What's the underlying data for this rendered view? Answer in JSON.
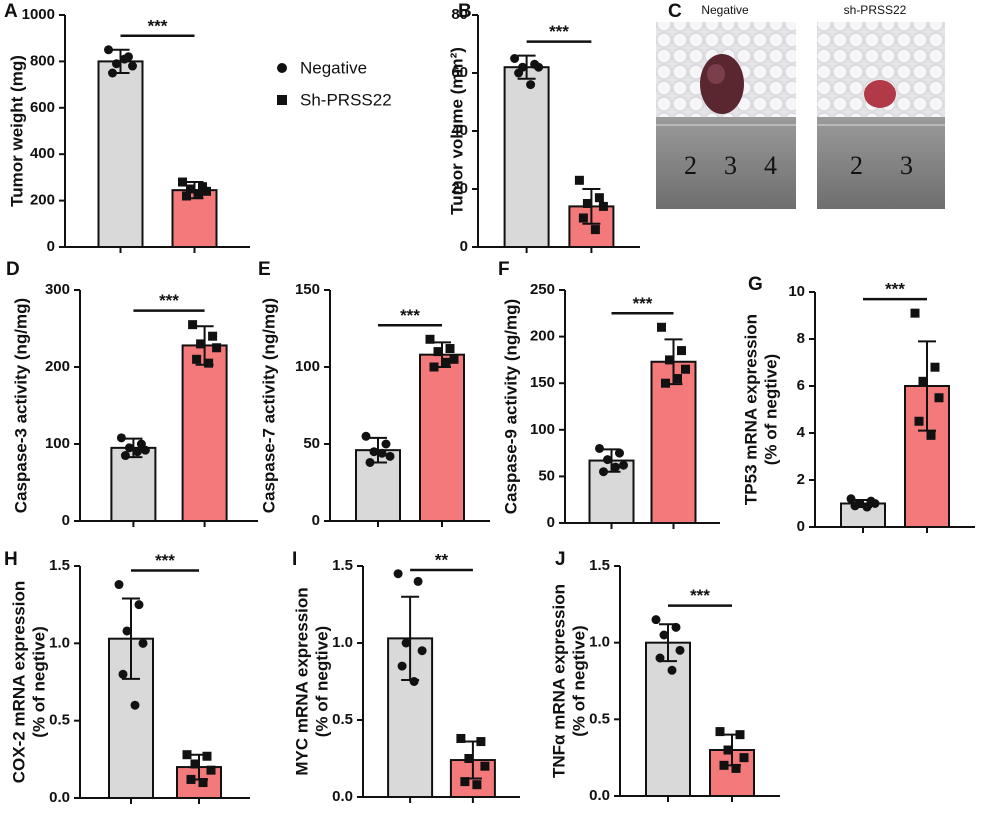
{
  "chart_data": [
    {
      "type": "bar",
      "panel": "A",
      "ylabel": "Tumor weight (mg)",
      "annotation": "***",
      "ylim": [
        0,
        1000
      ],
      "yticks": [
        0,
        200,
        400,
        600,
        800,
        1000
      ],
      "series": [
        {
          "name": "Negative",
          "color": "#d9d9d9",
          "marker": "circle",
          "values": [
            800
          ],
          "errors": [
            50
          ],
          "points": [
            850,
            820,
            790,
            780,
            750,
            810
          ]
        },
        {
          "name": "Sh-PRSS22",
          "color": "#f4797b",
          "marker": "square",
          "values": [
            245
          ],
          "errors": [
            35
          ],
          "points": [
            280,
            260,
            250,
            240,
            220,
            230
          ]
        }
      ]
    },
    {
      "type": "bar",
      "panel": "B",
      "ylabel": "Tumor volume (mm²)",
      "annotation": "***",
      "ylim": [
        0,
        80
      ],
      "yticks": [
        0,
        20,
        40,
        60,
        80
      ],
      "series": [
        {
          "name": "Negative",
          "color": "#d9d9d9",
          "marker": "circle",
          "values": [
            62
          ],
          "errors": [
            4
          ],
          "points": [
            65,
            63,
            62,
            62,
            60,
            56
          ]
        },
        {
          "name": "Sh-PRSS22",
          "color": "#f4797b",
          "marker": "square",
          "values": [
            14
          ],
          "errors": [
            6
          ],
          "points": [
            23,
            17,
            15,
            14,
            10,
            6
          ]
        }
      ]
    },
    {
      "type": "bar",
      "panel": "D",
      "ylabel": "Caspase-3 activity (ng/mg)",
      "annotation": "***",
      "ylim": [
        0,
        300
      ],
      "yticks": [
        0,
        100,
        200,
        300
      ],
      "series": [
        {
          "name": "Negative",
          "color": "#d9d9d9",
          "marker": "circle",
          "values": [
            95
          ],
          "errors": [
            12
          ],
          "points": [
            108,
            100,
            95,
            92,
            85,
            90
          ]
        },
        {
          "name": "Sh-PRSS22",
          "color": "#f4797b",
          "marker": "square",
          "values": [
            228
          ],
          "errors": [
            25
          ],
          "points": [
            255,
            240,
            230,
            225,
            210,
            205
          ]
        }
      ]
    },
    {
      "type": "bar",
      "panel": "E",
      "ylabel": "Caspase-7 activity (ng/mg)",
      "annotation": "***",
      "ylim": [
        0,
        150
      ],
      "yticks": [
        0,
        50,
        100,
        150
      ],
      "series": [
        {
          "name": "Negative",
          "color": "#d9d9d9",
          "marker": "circle",
          "values": [
            46
          ],
          "errors": [
            8
          ],
          "points": [
            55,
            50,
            45,
            42,
            38,
            44
          ]
        },
        {
          "name": "Sh-PRSS22",
          "color": "#f4797b",
          "marker": "square",
          "values": [
            108
          ],
          "errors": [
            8
          ],
          "points": [
            118,
            112,
            110,
            105,
            100,
            103
          ]
        }
      ]
    },
    {
      "type": "bar",
      "panel": "F",
      "ylabel": "Caspase-9 activity (ng/mg)",
      "annotation": "***",
      "ylim": [
        0,
        250
      ],
      "yticks": [
        0,
        50,
        100,
        150,
        200,
        250
      ],
      "series": [
        {
          "name": "Negative",
          "color": "#d9d9d9",
          "marker": "circle",
          "values": [
            67
          ],
          "errors": [
            12
          ],
          "points": [
            80,
            75,
            68,
            62,
            55,
            60
          ]
        },
        {
          "name": "Sh-PRSS22",
          "color": "#f4797b",
          "marker": "square",
          "values": [
            173
          ],
          "errors": [
            24
          ],
          "points": [
            210,
            185,
            175,
            165,
            150,
            155
          ]
        }
      ]
    },
    {
      "type": "bar",
      "panel": "G",
      "ylabel": [
        "TP53 mRNA expression",
        "(% of negtive)"
      ],
      "annotation": "***",
      "ylim": [
        0,
        10
      ],
      "yticks": [
        0,
        2,
        4,
        6,
        8,
        10
      ],
      "series": [
        {
          "name": "Negative",
          "color": "#d9d9d9",
          "marker": "circle",
          "values": [
            1.0
          ],
          "errors": [
            0.15
          ],
          "points": [
            1.2,
            1.1,
            1.0,
            1.0,
            0.9,
            0.85
          ]
        },
        {
          "name": "Sh-PRSS22",
          "color": "#f4797b",
          "marker": "square",
          "values": [
            6.0
          ],
          "errors": [
            1.9
          ],
          "points": [
            9.1,
            6.8,
            6.2,
            5.5,
            4.5,
            3.9
          ]
        }
      ]
    },
    {
      "type": "bar",
      "panel": "H",
      "ylabel": [
        "COX-2 mRNA expression",
        "(% of negtive)"
      ],
      "annotation": "***",
      "ylim": [
        0,
        1.5
      ],
      "yticks": [
        {
          "value": 0,
          "label": "0.0"
        },
        0.5,
        {
          "value": 1,
          "label": "1.0"
        },
        1.5
      ],
      "series": [
        {
          "name": "Negative",
          "color": "#d9d9d9",
          "marker": "circle",
          "values": [
            1.03
          ],
          "errors": [
            0.26
          ],
          "points": [
            1.38,
            1.25,
            1.08,
            1.0,
            0.8,
            0.6
          ]
        },
        {
          "name": "Sh-PRSS22",
          "color": "#f4797b",
          "marker": "square",
          "values": [
            0.2
          ],
          "errors": [
            0.08
          ],
          "points": [
            0.28,
            0.27,
            0.22,
            0.18,
            0.12,
            0.1
          ]
        }
      ]
    },
    {
      "type": "bar",
      "panel": "I",
      "ylabel": [
        "MYC mRNA expression",
        "(% of negtive)"
      ],
      "annotation": "**",
      "ylim": [
        0,
        1.5
      ],
      "yticks": [
        {
          "value": 0,
          "label": "0.0"
        },
        0.5,
        {
          "value": 1,
          "label": "1.0"
        },
        1.5
      ],
      "series": [
        {
          "name": "Negative",
          "color": "#d9d9d9",
          "marker": "circle",
          "values": [
            1.03
          ],
          "errors": [
            0.27
          ],
          "points": [
            1.45,
            1.4,
            1.0,
            0.95,
            0.85,
            0.75
          ]
        },
        {
          "name": "Sh-PRSS22",
          "color": "#f4797b",
          "marker": "square",
          "values": [
            0.24
          ],
          "errors": [
            0.12
          ],
          "points": [
            0.38,
            0.36,
            0.25,
            0.2,
            0.1,
            0.08
          ]
        }
      ]
    },
    {
      "type": "bar",
      "panel": "J",
      "ylabel": [
        "TNFα mRNA expression",
        "(% of negtive)"
      ],
      "annotation": "***",
      "ylim": [
        0,
        1.5
      ],
      "yticks": [
        {
          "value": 0,
          "label": "0.0"
        },
        0.5,
        {
          "value": 1,
          "label": "1.0"
        },
        1.5
      ],
      "series": [
        {
          "name": "Negative",
          "color": "#d9d9d9",
          "marker": "circle",
          "values": [
            1.0
          ],
          "errors": [
            0.12
          ],
          "points": [
            1.15,
            1.1,
            1.05,
            0.95,
            0.9,
            0.82
          ]
        },
        {
          "name": "Sh-PRSS22",
          "color": "#f4797b",
          "marker": "square",
          "values": [
            0.3
          ],
          "errors": [
            0.1
          ],
          "points": [
            0.42,
            0.4,
            0.3,
            0.25,
            0.2,
            0.18
          ]
        }
      ]
    }
  ],
  "photo": {
    "panel": "C",
    "captions": [
      "Negative",
      "sh-PRSS22"
    ],
    "left_ruler": [
      "2",
      "3",
      "4"
    ],
    "right_ruler": [
      "2",
      "3"
    ]
  }
}
